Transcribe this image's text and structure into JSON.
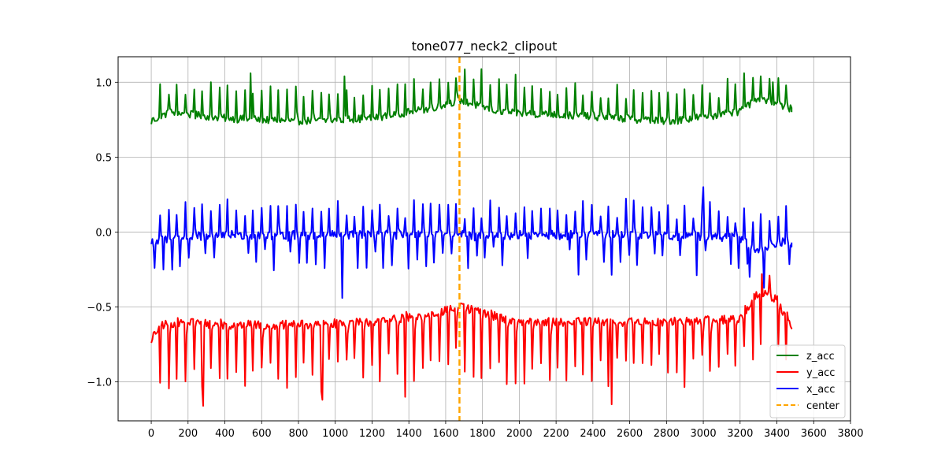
{
  "chart_data": {
    "type": "line",
    "title": "tone077_neck2_clipout",
    "xlabel": "",
    "ylabel": "",
    "xlim": [
      -180,
      3800
    ],
    "ylim": [
      -1.26,
      1.17
    ],
    "xticks": [
      0,
      200,
      400,
      600,
      800,
      1000,
      1200,
      1400,
      1600,
      1800,
      2000,
      2200,
      2400,
      2600,
      2800,
      3000,
      3200,
      3400,
      3600,
      3800
    ],
    "yticks": [
      -1.0,
      -0.5,
      0.0,
      0.5,
      1.0
    ],
    "xtick_labels": [
      "0",
      "200",
      "400",
      "600",
      "800",
      "1000",
      "1200",
      "1400",
      "1600",
      "1800",
      "2000",
      "2200",
      "2400",
      "2600",
      "2800",
      "3000",
      "3200",
      "3400",
      "3600",
      "3800"
    ],
    "ytick_labels": [
      "−1.0",
      "−0.5",
      "0.0",
      "0.5",
      "1.0"
    ],
    "grid": true,
    "legend_position": "lower-right",
    "center_line": {
      "name": "center",
      "x": 1675,
      "color": "#ffa500",
      "style": "dashed"
    },
    "series": [
      {
        "name": "z_acc",
        "color": "#008000",
        "x_range": [
          0,
          3480
        ],
        "start": 0.72,
        "end": 0.8,
        "baseline_points": [
          [
            0,
            0.74
          ],
          [
            100,
            0.8
          ],
          [
            400,
            0.76
          ],
          [
            800,
            0.74
          ],
          [
            1200,
            0.76
          ],
          [
            1500,
            0.82
          ],
          [
            1675,
            0.88
          ],
          [
            1900,
            0.8
          ],
          [
            2400,
            0.77
          ],
          [
            2800,
            0.74
          ],
          [
            3200,
            0.8
          ],
          [
            3300,
            0.9
          ],
          [
            3480,
            0.82
          ]
        ],
        "noise": 0.025,
        "spike_period": 46,
        "spike_amp": 0.22,
        "spike_dir": 1,
        "notable": [
          [
            540,
            1.06
          ],
          [
            1050,
            1.04
          ],
          [
            3220,
            1.06
          ],
          [
            3310,
            1.04
          ],
          [
            3380,
            1.0
          ]
        ]
      },
      {
        "name": "y_acc",
        "color": "#ff0000",
        "x_range": [
          0,
          3480
        ],
        "start": -0.74,
        "end": -0.64,
        "baseline_points": [
          [
            0,
            -0.72
          ],
          [
            50,
            -0.62
          ],
          [
            200,
            -0.6
          ],
          [
            400,
            -0.62
          ],
          [
            800,
            -0.62
          ],
          [
            1200,
            -0.6
          ],
          [
            1500,
            -0.56
          ],
          [
            1675,
            -0.5
          ],
          [
            1800,
            -0.54
          ],
          [
            2000,
            -0.6
          ],
          [
            2400,
            -0.6
          ],
          [
            2800,
            -0.6
          ],
          [
            3200,
            -0.58
          ],
          [
            3300,
            -0.4
          ],
          [
            3400,
            -0.45
          ],
          [
            3480,
            -0.64
          ]
        ],
        "noise": 0.03,
        "spike_period": 46,
        "spike_amp": -0.42,
        "spike_dir": -1,
        "notable": [
          [
            280,
            -1.16
          ],
          [
            930,
            -1.12
          ],
          [
            1380,
            -1.1
          ],
          [
            2500,
            -1.15
          ],
          [
            3320,
            -0.28
          ],
          [
            3360,
            -0.29
          ]
        ]
      },
      {
        "name": "x_acc",
        "color": "#0000ff",
        "x_range": [
          0,
          3480
        ],
        "start": -0.08,
        "end": -0.07,
        "baseline_points": [
          [
            0,
            -0.08
          ],
          [
            100,
            -0.04
          ],
          [
            400,
            -0.02
          ],
          [
            800,
            -0.02
          ],
          [
            1200,
            -0.02
          ],
          [
            1600,
            -0.02
          ],
          [
            2000,
            -0.02
          ],
          [
            2400,
            -0.02
          ],
          [
            2800,
            -0.02
          ],
          [
            3200,
            -0.04
          ],
          [
            3300,
            -0.12
          ],
          [
            3400,
            -0.07
          ],
          [
            3480,
            -0.07
          ]
        ],
        "noise": 0.03,
        "spike_period": 46,
        "spike_amp": 0.22,
        "spike_dir": 1,
        "down_spike_amp": -0.26,
        "notable": [
          [
            1040,
            -0.44
          ],
          [
            3000,
            0.3
          ],
          [
            3250,
            -0.3
          ]
        ]
      }
    ]
  }
}
